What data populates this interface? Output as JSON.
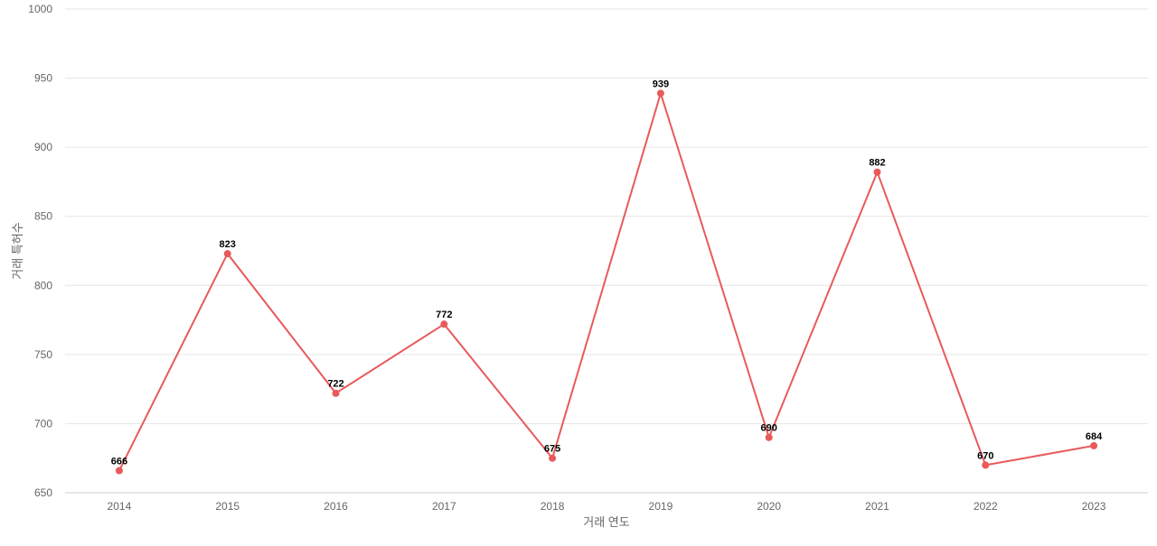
{
  "chart_data": {
    "type": "line",
    "title": "",
    "xlabel": "거래 연도",
    "ylabel": "거래 특허수",
    "x": [
      "2014",
      "2015",
      "2016",
      "2017",
      "2018",
      "2019",
      "2020",
      "2021",
      "2022",
      "2023"
    ],
    "series": [
      {
        "values": [
          666,
          823,
          722,
          772,
          675,
          939,
          690,
          882,
          670,
          684
        ],
        "color": "#e85a5a"
      }
    ],
    "ylim": [
      650,
      1000
    ],
    "yticks": [
      650,
      700,
      750,
      800,
      850,
      900,
      950,
      1000
    ],
    "grid": true,
    "legend": "none",
    "data_labels": true
  }
}
